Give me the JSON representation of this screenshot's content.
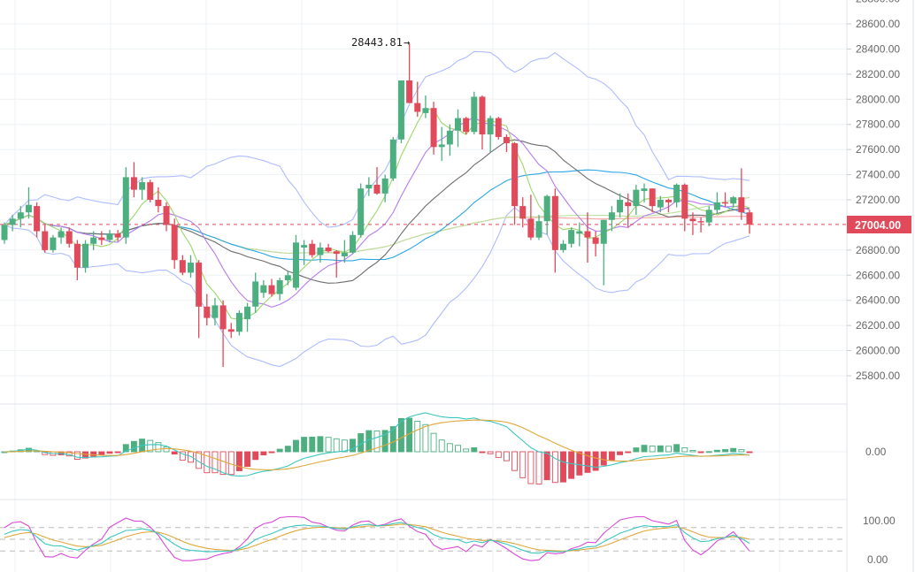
{
  "chart_data": {
    "type": "candlestick",
    "title": "",
    "price_axis": {
      "ticks": [
        "28800.00",
        "28600.00",
        "28400.00",
        "28200.00",
        "28000.00",
        "27800.00",
        "27600.00",
        "27400.00",
        "27200.00",
        "26800.00",
        "26600.00",
        "26400.00",
        "26200.00",
        "26000.00",
        "25800.00"
      ],
      "range": [
        25600,
        28800
      ]
    },
    "last_price": {
      "label": "27004.00",
      "value": 27004.0
    },
    "high_annotation": {
      "label": "28443.81",
      "arrow": "→",
      "value": 28443.81,
      "candle_index": 50
    },
    "candles_ohlc": [
      [
        26880,
        27020,
        26850,
        27000
      ],
      [
        27000,
        27080,
        26950,
        27050
      ],
      [
        27050,
        27150,
        26980,
        27100
      ],
      [
        27100,
        27300,
        27050,
        27160
      ],
      [
        27150,
        27180,
        26900,
        26950
      ],
      [
        26950,
        27000,
        26780,
        26800
      ],
      [
        26800,
        26920,
        26780,
        26900
      ],
      [
        26900,
        26980,
        26850,
        26950
      ],
      [
        26950,
        26980,
        26820,
        26850
      ],
      [
        26850,
        26880,
        26560,
        26660
      ],
      [
        26660,
        26880,
        26620,
        26850
      ],
      [
        26850,
        26950,
        26800,
        26900
      ],
      [
        26900,
        26950,
        26840,
        26880
      ],
      [
        26880,
        26960,
        26860,
        26930
      ],
      [
        26930,
        26960,
        26870,
        26900
      ],
      [
        26900,
        27460,
        26850,
        27380
      ],
      [
        27380,
        27500,
        27220,
        27280
      ],
      [
        27280,
        27380,
        27200,
        27340
      ],
      [
        27340,
        27360,
        27180,
        27200
      ],
      [
        27200,
        27300,
        27100,
        27150
      ],
      [
        27150,
        27180,
        26950,
        27000
      ],
      [
        27000,
        27050,
        26650,
        26720
      ],
      [
        26720,
        26760,
        26600,
        26620
      ],
      [
        26620,
        26760,
        26580,
        26700
      ],
      [
        26700,
        26720,
        26100,
        26350
      ],
      [
        26350,
        26450,
        26200,
        26260
      ],
      [
        26260,
        26420,
        26200,
        26360
      ],
      [
        26360,
        26400,
        25870,
        26170
      ],
      [
        26170,
        26220,
        26100,
        26150
      ],
      [
        26150,
        26320,
        26120,
        26300
      ],
      [
        26250,
        26380,
        26150,
        26350
      ],
      [
        26350,
        26620,
        26300,
        26550
      ],
      [
        26460,
        26560,
        26420,
        26520
      ],
      [
        26520,
        26570,
        26430,
        26450
      ],
      [
        26450,
        26580,
        26400,
        26560
      ],
      [
        26560,
        26630,
        26520,
        26600
      ],
      [
        26500,
        26920,
        26480,
        26860
      ],
      [
        26820,
        26880,
        26680,
        26840
      ],
      [
        26850,
        26880,
        26740,
        26760
      ],
      [
        26760,
        26860,
        26700,
        26820
      ],
      [
        26820,
        26850,
        26780,
        26790
      ],
      [
        26790,
        26800,
        26580,
        26770
      ],
      [
        26750,
        26880,
        26700,
        26780
      ],
      [
        26780,
        26950,
        26770,
        26920
      ],
      [
        26920,
        27330,
        26900,
        27290
      ],
      [
        27290,
        27380,
        27230,
        27320
      ],
      [
        27320,
        27460,
        27240,
        27250
      ],
      [
        27250,
        27400,
        27180,
        27370
      ],
      [
        27370,
        27700,
        27350,
        27680
      ],
      [
        27680,
        28150,
        27650,
        28150
      ],
      [
        28150,
        28443.81,
        28050,
        27970
      ],
      [
        27970,
        28140,
        27860,
        27900
      ],
      [
        27890,
        28030,
        27850,
        27930
      ],
      [
        27930,
        27980,
        27560,
        27620
      ],
      [
        27620,
        27780,
        27510,
        27640
      ],
      [
        27640,
        27800,
        27550,
        27750
      ],
      [
        27750,
        27920,
        27620,
        27850
      ],
      [
        27850,
        27860,
        27720,
        27740
      ],
      [
        27740,
        28060,
        27720,
        28020
      ],
      [
        28020,
        28030,
        27600,
        27720
      ],
      [
        27720,
        27870,
        27580,
        27850
      ],
      [
        27850,
        27860,
        27680,
        27700
      ],
      [
        27700,
        27720,
        27580,
        27650
      ],
      [
        27650,
        27660,
        27000,
        27150
      ],
      [
        27150,
        27220,
        26980,
        27050
      ],
      [
        27050,
        27240,
        26880,
        26900
      ],
      [
        26900,
        27080,
        26880,
        27030
      ],
      [
        27030,
        27240,
        26920,
        27230
      ],
      [
        27230,
        27290,
        26620,
        26800
      ],
      [
        26800,
        26880,
        26780,
        26850
      ],
      [
        26850,
        26980,
        26820,
        26960
      ],
      [
        26930,
        27020,
        26830,
        26950
      ],
      [
        26950,
        27100,
        26700,
        26900
      ],
      [
        26900,
        26950,
        26750,
        26850
      ],
      [
        26850,
        27040,
        26520,
        27040
      ],
      [
        27040,
        27150,
        26950,
        27100
      ],
      [
        27100,
        27250,
        27060,
        27200
      ],
      [
        27180,
        27250,
        26980,
        27150
      ],
      [
        27150,
        27320,
        27080,
        27280
      ],
      [
        27270,
        27330,
        27180,
        27290
      ],
      [
        27290,
        27290,
        27100,
        27150
      ],
      [
        27140,
        27230,
        27100,
        27200
      ],
      [
        27200,
        27210,
        27100,
        27180
      ],
      [
        27180,
        27330,
        27140,
        27320
      ],
      [
        27320,
        27330,
        26950,
        27050
      ],
      [
        27050,
        27100,
        26920,
        27030
      ],
      [
        27030,
        27060,
        26940,
        27020
      ],
      [
        27020,
        27150,
        26990,
        27120
      ],
      [
        27120,
        27260,
        27090,
        27180
      ],
      [
        27180,
        27260,
        27140,
        27170
      ],
      [
        27170,
        27230,
        27140,
        27220
      ],
      [
        27220,
        27450,
        27040,
        27100
      ],
      [
        27100,
        27120,
        26930,
        27004
      ]
    ],
    "overlays": [
      "MA5",
      "MA10",
      "MA20",
      "MA30",
      "MA60",
      "MA120",
      "BOLL(20,2)"
    ],
    "macd_panel": {
      "tick_label": "0.00",
      "params": [
        12,
        26,
        9
      ]
    },
    "kdj_panel": {
      "tick_labels": [
        "100.00",
        "0.00"
      ],
      "levels": [
        80,
        50,
        20
      ],
      "params": [
        9,
        3,
        3
      ]
    },
    "colors": {
      "up": "#4daf80",
      "down": "#e04a5a",
      "ma5": "#9bd86a",
      "ma10": "#b47cf0",
      "ma20": "#6d6d6d",
      "ma30": "#2aa7e6",
      "ma60": "#b9e29c",
      "ma120": "#f6a3a3",
      "boll": "#aebcff",
      "dif": "#3cc6c0",
      "dea": "#e0a83a",
      "k": "#3cc6c0",
      "d": "#e0a83a",
      "j": "#d84ad8"
    }
  }
}
